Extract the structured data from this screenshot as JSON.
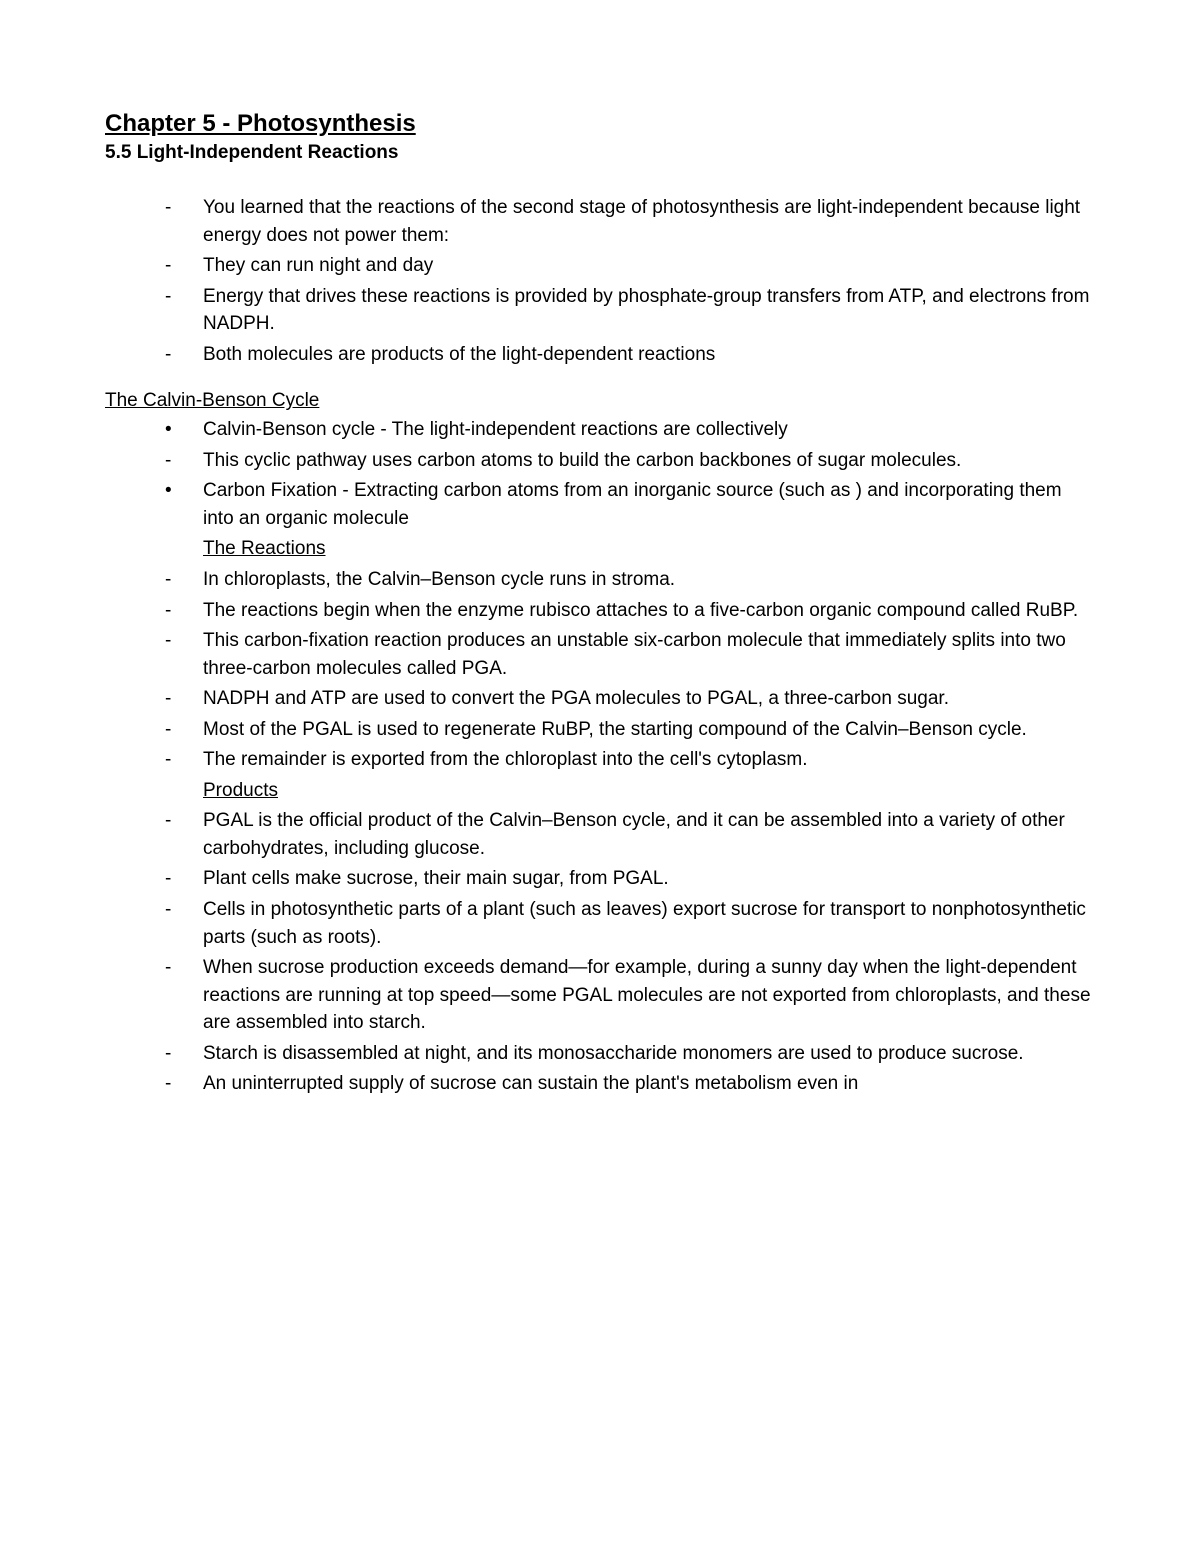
{
  "chapter_title": "Chapter 5 - Photosynthesis",
  "section_title": "5.5 Light-Independent Reactions",
  "intro_items": [
    "You learned that the reactions of the second stage of photosynthesis are light-independent because light energy does not power them:",
    "They can run night and day",
    "Energy that drives these reactions is provided by phosphate-group transfers from ATP, and electrons from NADPH.",
    "Both molecules are products of the light-dependent reactions"
  ],
  "subheading_calvin": "The Calvin-Benson Cycle",
  "calvin_items": [
    {
      "marker": "bullet",
      "text": "Calvin-Benson cycle - The light-independent reactions are collectively"
    },
    {
      "marker": "dash",
      "text": "This cyclic pathway uses carbon atoms to build the carbon backbones of sugar molecules."
    },
    {
      "marker": "bullet",
      "text": "Carbon Fixation - Extracting carbon atoms from an inorganic source (such as ) and incorporating them into an organic molecule"
    }
  ],
  "subsub_reactions": "The Reactions",
  "reactions_items": [
    "In chloroplasts, the Calvin–Benson cycle runs in stroma.",
    "The reactions begin when the enzyme rubisco attaches  to a five-carbon organic compound called RuBP.",
    "This carbon-fixation reaction produces an unstable six-carbon molecule that immediately splits into two three-carbon molecules called PGA.",
    "NADPH and ATP are used to convert the PGA molecules to PGAL, a three-carbon sugar.",
    "Most of the PGAL is used to regenerate RuBP, the starting compound of the Calvin–Benson cycle.",
    "The remainder is exported from the chloroplast into the cell's cytoplasm."
  ],
  "subsub_products": "Products",
  "products_items": [
    "PGAL is the official product of the Calvin–Benson cycle, and it can be assembled into a variety of other carbohydrates, including glucose.",
    "Plant cells make sucrose, their main sugar, from PGAL.",
    "Cells in photosynthetic parts of a plant (such as leaves) export sucrose for transport to nonphotosynthetic parts (such as roots).",
    "When sucrose production exceeds demand—for example, during a sunny day when the light-dependent reactions are running at top speed—some PGAL molecules are not exported from chloroplasts, and these are assembled into starch.",
    "Starch is disassembled at night, and its monosaccharide monomers are used to produce sucrose.",
    "An uninterrupted supply of sucrose can sustain the plant's metabolism even in"
  ]
}
